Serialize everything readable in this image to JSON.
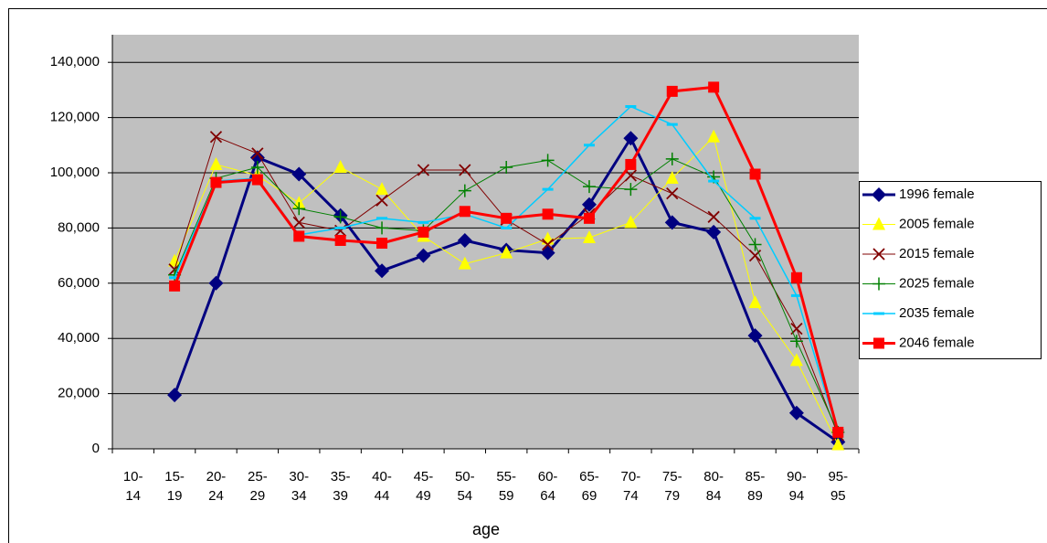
{
  "chart_data": {
    "type": "line",
    "x_label": "age",
    "categories": [
      "10-14",
      "15-19",
      "20-24",
      "25-29",
      "30-34",
      "35-39",
      "40-44",
      "45-49",
      "50-54",
      "55-59",
      "60-64",
      "65-69",
      "70-74",
      "75-79",
      "80-84",
      "85-89",
      "90-94",
      "95-95"
    ],
    "ylim": [
      0,
      150000
    ],
    "yticks": [
      0,
      {
        "value": 20000,
        "label": "20,000"
      },
      {
        "value": 40000,
        "label": "40,000"
      },
      {
        "value": 60000,
        "label": "60,000"
      },
      {
        "value": 80000,
        "label": "80,000"
      },
      {
        "value": 100000,
        "label": "100,000"
      },
      {
        "value": 120000,
        "label": "120,000"
      },
      {
        "value": 140000,
        "label": "140,000"
      }
    ],
    "grid": true,
    "legend": "right",
    "series": [
      {
        "name": "1996 female",
        "color": "#000080",
        "marker": "diamond",
        "values": [
          null,
          19500,
          60000,
          105500,
          99500,
          84500,
          64500,
          70000,
          75500,
          72000,
          71000,
          88500,
          112500,
          82000,
          78500,
          41000,
          13000,
          2500
        ]
      },
      {
        "name": "2005 female",
        "color": "#ffff00",
        "marker": "triangle",
        "values": [
          null,
          68000,
          103000,
          99000,
          89000,
          102000,
          94000,
          77000,
          67000,
          71000,
          76000,
          76500,
          82000,
          98000,
          113000,
          53000,
          32000,
          1500
        ]
      },
      {
        "name": "2015 female",
        "color": "#800000",
        "marker": "x",
        "values": [
          null,
          65000,
          113000,
          107000,
          82000,
          79000,
          90000,
          101000,
          101000,
          83000,
          74000,
          85000,
          99000,
          92500,
          84000,
          70000,
          43500,
          5000
        ]
      },
      {
        "name": "2025 female",
        "color": "#008000",
        "marker": "plus",
        "values": [
          null,
          63000,
          98000,
          102000,
          87000,
          84000,
          80000,
          79000,
          93500,
          102000,
          104500,
          95000,
          94000,
          105000,
          98500,
          74000,
          39000,
          6000
        ]
      },
      {
        "name": "2035 female",
        "color": "#00ccff",
        "marker": "dash",
        "values": [
          null,
          62000,
          97000,
          98000,
          77500,
          80000,
          83500,
          82000,
          85000,
          80000,
          94000,
          110000,
          124000,
          117500,
          97000,
          83500,
          55500,
          5500
        ]
      },
      {
        "name": "2046 female",
        "color": "#ff0000",
        "marker": "square",
        "values": [
          null,
          59000,
          96500,
          97500,
          77000,
          75500,
          74500,
          78500,
          86000,
          83500,
          85000,
          83500,
          103000,
          129500,
          131000,
          99500,
          62000,
          6000
        ]
      }
    ]
  }
}
